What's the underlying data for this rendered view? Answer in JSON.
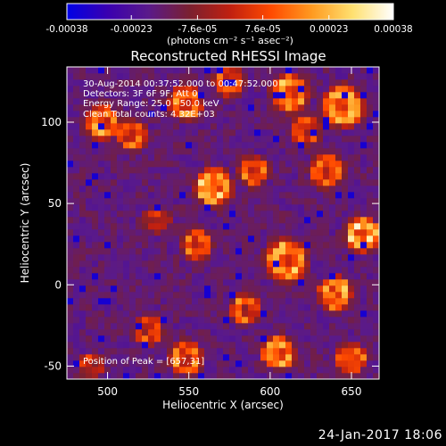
{
  "chart_data": {
    "type": "heatmap",
    "title": "Reconstructed RHESSI Image",
    "xlabel": "Heliocentric X (arcsec)",
    "ylabel": "Heliocentric Y (arcsec)",
    "xlim": [
      475,
      667
    ],
    "ylim": [
      -58,
      134
    ],
    "x_ticks": [
      500,
      550,
      600,
      650
    ],
    "y_ticks": [
      -50,
      0,
      50,
      100
    ],
    "colorbar": {
      "unit_label": "(photons cm⁻² s⁻¹ asec⁻²)",
      "range": [
        -0.00038,
        0.00038
      ],
      "ticks": [
        {
          "value": -0.00038,
          "label": "-0.00038"
        },
        {
          "value": -0.00023,
          "label": "-0.00023"
        },
        {
          "value": -7.6e-05,
          "label": "-7.6e-05"
        },
        {
          "value": 7.6e-05,
          "label": "7.6e-05"
        },
        {
          "value": 0.00023,
          "label": "0.00023"
        },
        {
          "value": 0.00038,
          "label": "0.00038"
        }
      ],
      "colors": [
        "#0000e6",
        "#3a00b0",
        "#5a1a8a",
        "#7a2030",
        "#c02010",
        "#ff4a00",
        "#ff9a20",
        "#ffe070",
        "#ffffff"
      ]
    },
    "annotations": [
      "30-Aug-2014 00:37:52.000 to 00:47:52.000",
      "Detectors: 3F 6F 9F, Att 0",
      "Energy Range: 25.0 - 50.0 keV",
      "Clean   Total counts: 4.32E+03"
    ],
    "peak_label": "Position of Peak = [657,31]",
    "peak": {
      "x": 657,
      "y": 31
    },
    "source_blobs": [
      {
        "x": 497,
        "y": 100,
        "amp": 0.8,
        "w": 10
      },
      {
        "x": 515,
        "y": 92,
        "amp": 0.6,
        "w": 9
      },
      {
        "x": 548,
        "y": 112,
        "amp": 0.75,
        "w": 10
      },
      {
        "x": 575,
        "y": 125,
        "amp": 0.6,
        "w": 9
      },
      {
        "x": 612,
        "y": 118,
        "amp": 0.8,
        "w": 11
      },
      {
        "x": 645,
        "y": 110,
        "amp": 0.9,
        "w": 12
      },
      {
        "x": 622,
        "y": 95,
        "amp": 0.55,
        "w": 9
      },
      {
        "x": 565,
        "y": 60,
        "amp": 0.9,
        "w": 11
      },
      {
        "x": 590,
        "y": 70,
        "amp": 0.6,
        "w": 9
      },
      {
        "x": 635,
        "y": 70,
        "amp": 0.7,
        "w": 10
      },
      {
        "x": 657,
        "y": 31,
        "amp": 1.0,
        "w": 10
      },
      {
        "x": 555,
        "y": 25,
        "amp": 0.7,
        "w": 9
      },
      {
        "x": 530,
        "y": 40,
        "amp": 0.45,
        "w": 8
      },
      {
        "x": 610,
        "y": 15,
        "amp": 0.85,
        "w": 12
      },
      {
        "x": 640,
        "y": -5,
        "amp": 0.8,
        "w": 10
      },
      {
        "x": 585,
        "y": -15,
        "amp": 0.65,
        "w": 9
      },
      {
        "x": 525,
        "y": -28,
        "amp": 0.55,
        "w": 9
      },
      {
        "x": 548,
        "y": -45,
        "amp": 0.7,
        "w": 10
      },
      {
        "x": 605,
        "y": -42,
        "amp": 0.75,
        "w": 10
      },
      {
        "x": 650,
        "y": -45,
        "amp": 0.7,
        "w": 9
      },
      {
        "x": 490,
        "y": -50,
        "amp": 0.4,
        "w": 8
      }
    ]
  },
  "footer": {
    "date": "24-Jan-2017 18:06"
  }
}
